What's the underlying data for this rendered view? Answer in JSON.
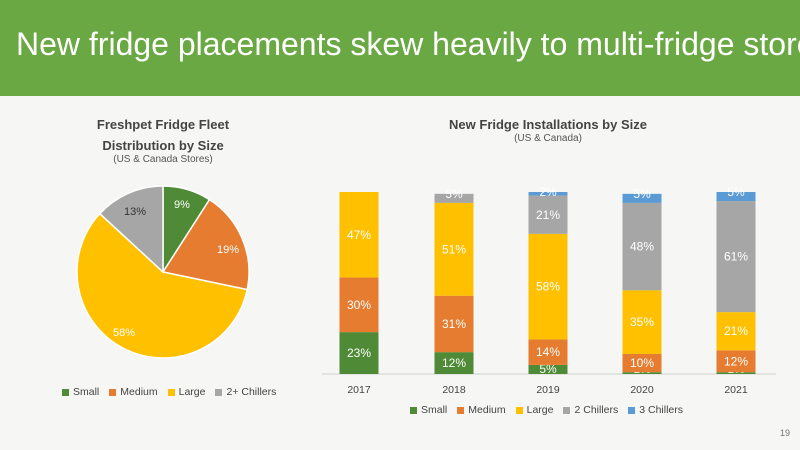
{
  "header": {
    "title": "New fridge placements skew heavily to multi-fridge stores"
  },
  "page_number": "19",
  "chart_data": [
    {
      "type": "pie",
      "title_line1": "Freshpet Fridge Fleet",
      "title_line2": "Distribution by Size",
      "subtitle": "(US & Canada Stores)",
      "slices": [
        {
          "name": "Small",
          "value": 9,
          "label": "9%",
          "color": "#4f8a36"
        },
        {
          "name": "Medium",
          "value": 19,
          "label": "19%",
          "color": "#e57c2f"
        },
        {
          "name": "Large",
          "value": 58,
          "label": "58%",
          "color": "#ffc000"
        },
        {
          "name": "2+ Chillers",
          "value": 13,
          "label": "13%",
          "color": "#a6a6a6"
        }
      ],
      "legend": [
        "Small",
        "Medium",
        "Large",
        "2+ Chillers"
      ],
      "legend_position": "bottom"
    },
    {
      "type": "bar",
      "stacked": true,
      "title": "New Fridge Installations by Size",
      "subtitle": "(US & Canada)",
      "categories": [
        "2017",
        "2018",
        "2019",
        "2020",
        "2021"
      ],
      "series": [
        {
          "name": "Small",
          "color": "#4f8a36",
          "values": [
            23,
            12,
            5,
            1,
            1
          ]
        },
        {
          "name": "Medium",
          "color": "#e57c2f",
          "values": [
            30,
            31,
            14,
            10,
            12
          ]
        },
        {
          "name": "Large",
          "color": "#ffc000",
          "values": [
            47,
            51,
            58,
            35,
            21
          ]
        },
        {
          "name": "2 Chillers",
          "color": "#a6a6a6",
          "values": [
            0,
            5,
            21,
            48,
            61
          ]
        },
        {
          "name": "3 Chillers",
          "color": "#5b9bd5",
          "values": [
            0,
            0,
            2,
            5,
            5
          ]
        }
      ],
      "labels": [
        [
          "23%",
          "30%",
          "47%",
          "",
          ""
        ],
        [
          "12%",
          "31%",
          "51%",
          "5%",
          ""
        ],
        [
          "5%",
          "14%",
          "58%",
          "21%",
          "2%"
        ],
        [
          "1%",
          "10%",
          "35%",
          "48%",
          "5%"
        ],
        [
          "1%",
          "12%",
          "21%",
          "61%",
          "5%"
        ]
      ],
      "ylim": [
        0,
        100
      ],
      "legend_position": "bottom"
    }
  ]
}
